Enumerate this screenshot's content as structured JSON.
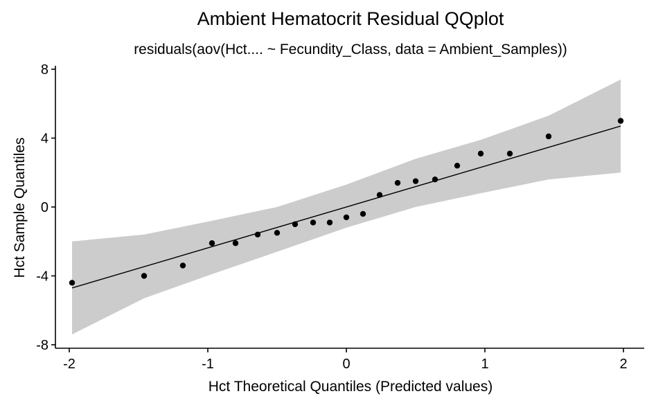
{
  "chart_data": {
    "type": "scatter",
    "title": "Ambient Hematocrit Residual QQplot",
    "subtitle": "residuals(aov(Hct.... ~ Fecundity_Class, data = Ambient_Samples))",
    "xlabel": "Hct Theoretical Quantiles (Predicted values)",
    "ylabel": "Hct Sample Quantiles",
    "xlim": [
      -2.1,
      2.15
    ],
    "ylim": [
      -8.2,
      8.2
    ],
    "x_ticks": [
      -2,
      -1,
      0,
      1,
      2
    ],
    "x_tick_labels": [
      "-2",
      "-1",
      "0",
      "1",
      "2"
    ],
    "y_ticks": [
      -8,
      -4,
      0,
      4,
      8
    ],
    "y_tick_labels": [
      "-8",
      "-4",
      "0",
      "4",
      "8"
    ],
    "grid": false,
    "points": {
      "x": [
        -1.98,
        -1.46,
        -1.18,
        -0.97,
        -0.8,
        -0.64,
        -0.5,
        -0.37,
        -0.24,
        -0.12,
        0.0,
        0.12,
        0.24,
        0.37,
        0.5,
        0.64,
        0.8,
        0.97,
        1.18,
        1.46,
        1.98
      ],
      "y": [
        -4.4,
        -4.0,
        -3.4,
        -2.1,
        -2.1,
        -1.6,
        -1.5,
        -1.0,
        -0.9,
        -0.9,
        -0.6,
        -0.4,
        0.7,
        1.4,
        1.5,
        1.6,
        2.4,
        3.1,
        3.1,
        4.1,
        5.0
      ]
    },
    "fit_line": {
      "x": [
        -1.98,
        1.98
      ],
      "y": [
        -4.7,
        4.7
      ]
    },
    "confidence_band": {
      "x": [
        -1.98,
        -1.46,
        -0.97,
        -0.5,
        0.0,
        0.5,
        0.97,
        1.46,
        1.98
      ],
      "lower": [
        -7.4,
        -5.3,
        -3.9,
        -2.6,
        -1.2,
        0.0,
        0.8,
        1.6,
        2.0
      ],
      "upper": [
        -2.0,
        -1.6,
        -0.8,
        0.0,
        1.3,
        2.8,
        3.9,
        5.3,
        7.4
      ]
    },
    "colors": {
      "band": "#cccccc",
      "points": "#000000",
      "line": "#000000"
    }
  }
}
